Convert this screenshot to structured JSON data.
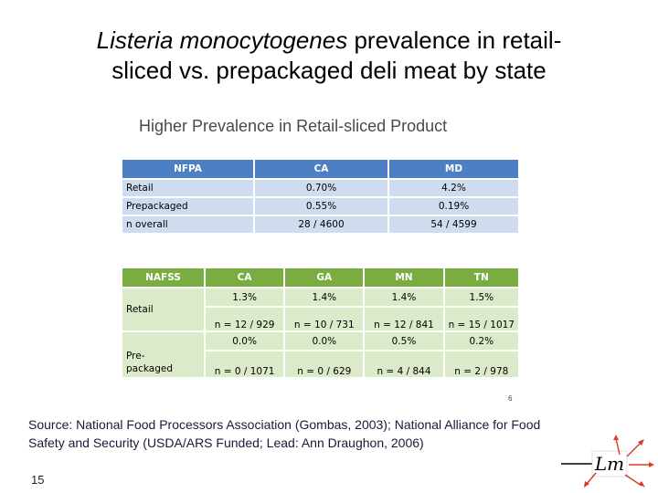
{
  "title": {
    "italic": "Listeria monocytogenes",
    "rest_line1": " prevalence in retail-",
    "line2": "sliced vs. prepackaged deli meat by state"
  },
  "subtitle": "Higher Prevalence in Retail-sliced Product",
  "table1": {
    "headers": [
      "NFPA",
      "CA",
      "MD"
    ],
    "rows": [
      {
        "label": "Retail",
        "values": [
          "0.70%",
          "4.2%"
        ]
      },
      {
        "label": "Prepackaged",
        "values": [
          "0.55%",
          "0.19%"
        ]
      },
      {
        "label": "n overall",
        "values": [
          "28 / 4600",
          "54 / 4599"
        ]
      }
    ]
  },
  "table2": {
    "headers": [
      "NAFSS",
      "CA",
      "GA",
      "MN",
      "TN"
    ],
    "retail": {
      "label": "Retail",
      "pct": [
        "1.3%",
        "1.4%",
        "1.4%",
        "1.5%"
      ],
      "n": [
        "n = 12 / 929",
        "n = 10 / 731",
        "n = 12 / 841",
        "n = 15 / 1017"
      ]
    },
    "prepackaged": {
      "label_line1": "Pre-",
      "label_line2": "packaged",
      "pct": [
        "0.0%",
        "0.0%",
        "0.5%",
        "0.2%"
      ],
      "n": [
        "n = 0 / 1071",
        "n = 0 / 629",
        "n = 4 / 844",
        "n = 2 / 978"
      ]
    }
  },
  "page_mark": "6",
  "source": "Source: National Food Processors Association (Gombas, 2003); National Alliance for Food Safety and Security (USDA/ARS Funded; Lead: Ann Draughon, 2006)",
  "slide_number": "15",
  "logo": {
    "text": "Lm",
    "line_color": "#000000",
    "arrow_color": "#d93a2a"
  }
}
